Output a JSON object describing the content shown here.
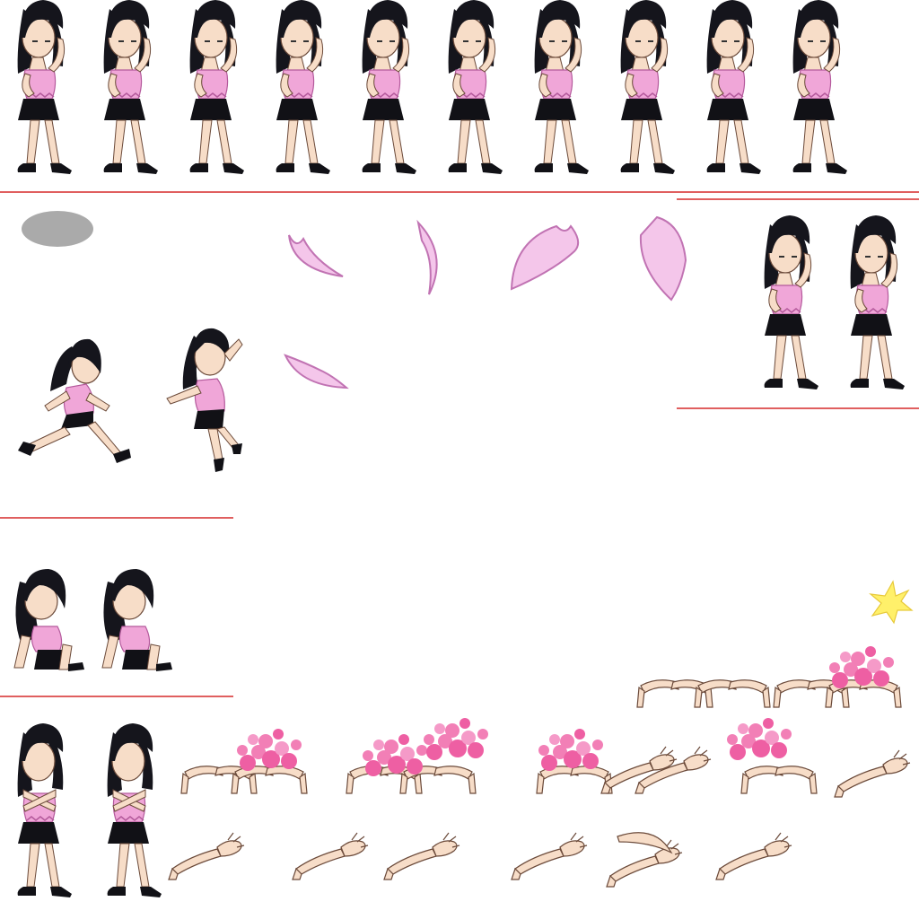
{
  "sheet": {
    "background": "#ffffff",
    "colors": {
      "hair": "#15151c",
      "skin": "#f7ddc8",
      "skin_line": "#6b4a3a",
      "top": "#f0a6d8",
      "top_dark": "#b45a9c",
      "skirt": "#111116",
      "shoe": "#111116",
      "petal": "#f4c6ea",
      "petal_edge": "#c173b3",
      "blossom": "#ee5fa3",
      "divider": "#d62a2a",
      "shadow": "#aaaaaa",
      "spark": "#fff06a"
    },
    "sections": [
      {
        "id": "idle-row",
        "frames": 10,
        "pose": "standing-hand-at-head"
      },
      {
        "id": "shadow",
        "frames": 1,
        "pose": "ground-shadow-ellipse"
      },
      {
        "id": "petals",
        "frames": 5,
        "pose": "falling-petal"
      },
      {
        "id": "idle-pair",
        "frames": 2,
        "pose": "standing-hand-at-head"
      },
      {
        "id": "move",
        "frames": 2,
        "pose": "run-and-jump"
      },
      {
        "id": "down",
        "frames": 2,
        "pose": "kneeling"
      },
      {
        "id": "cast",
        "frames": 2,
        "pose": "arms-crossed"
      },
      {
        "id": "spark",
        "frames": 1,
        "pose": "hit-spark"
      },
      {
        "id": "arms-effect",
        "frames": 18,
        "pose": "sprouting-arms-and-blossoms"
      }
    ]
  }
}
